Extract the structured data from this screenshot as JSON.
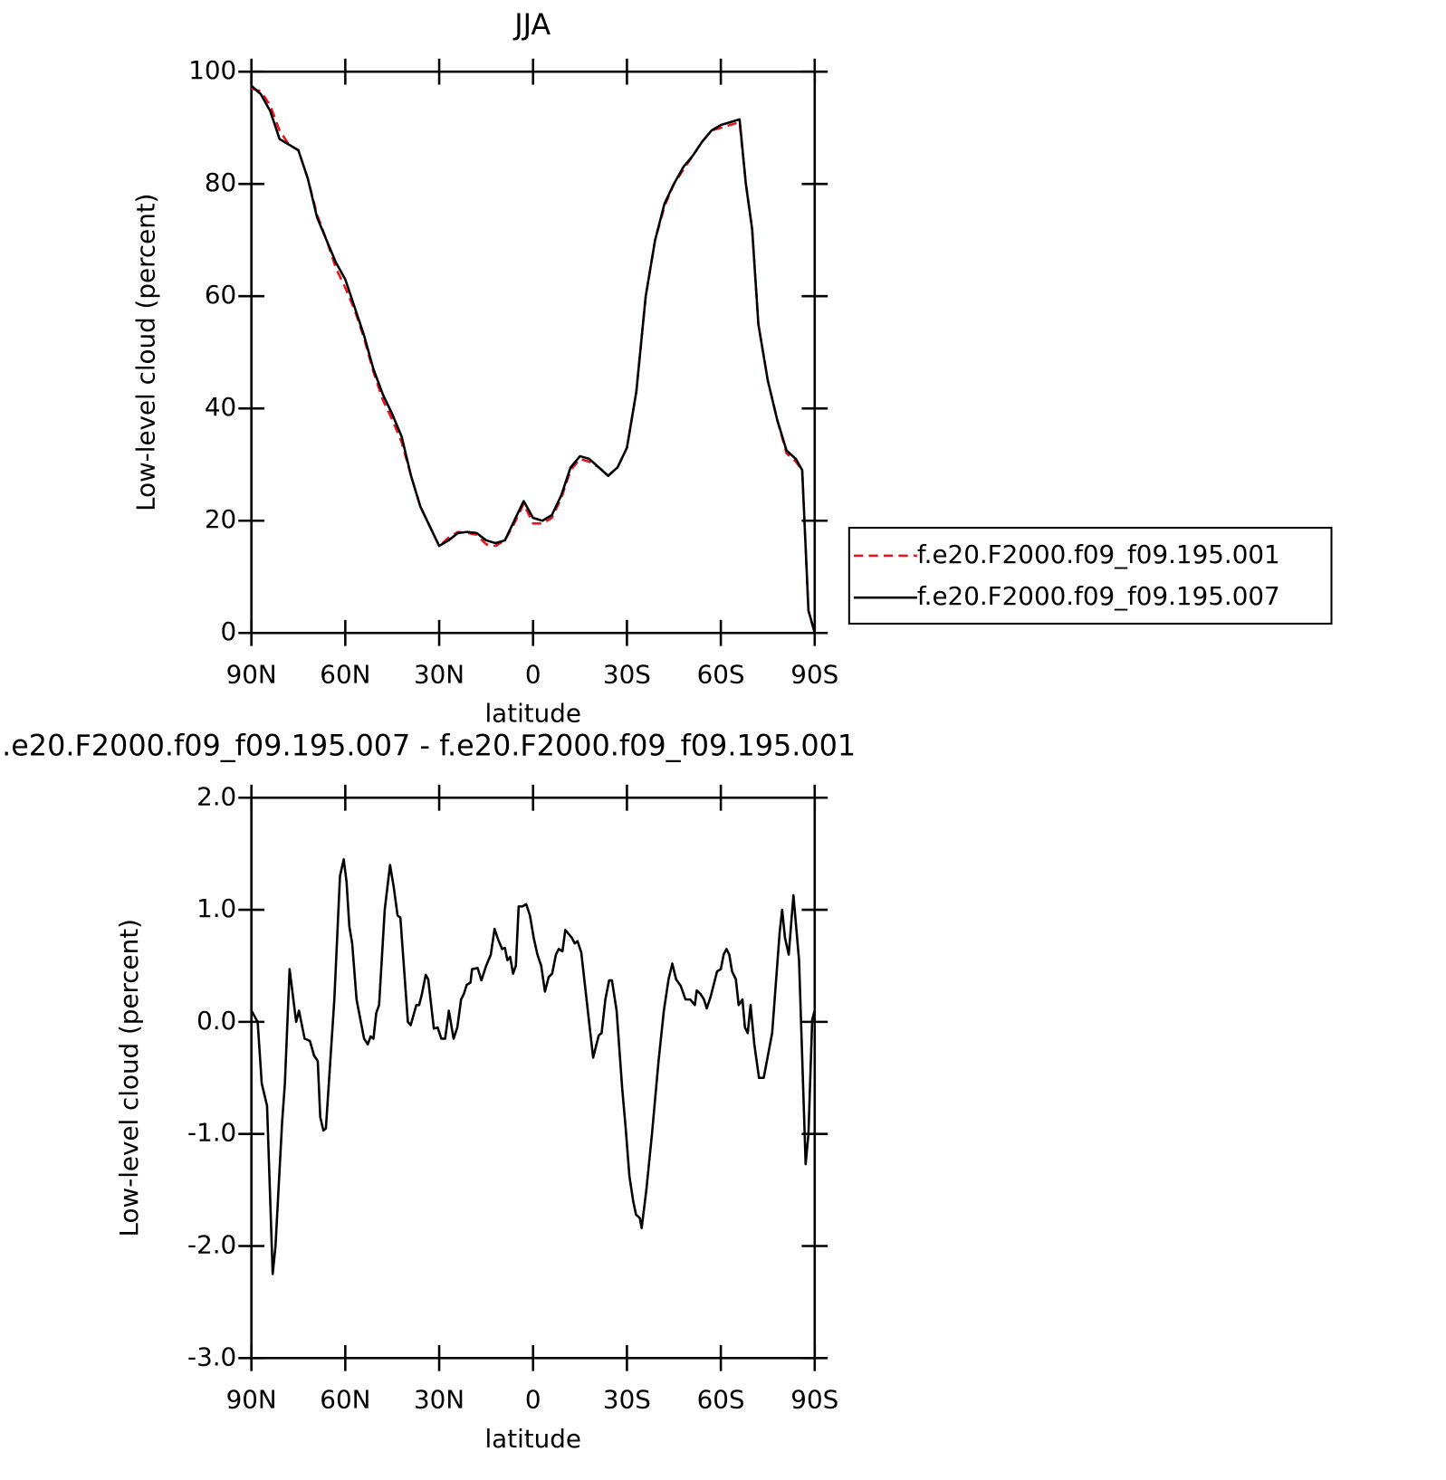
{
  "chart_data": [
    {
      "type": "line",
      "title": "JJA",
      "x_label": "latitude",
      "y_label": "Low-level cloud (percent)",
      "xlim": [
        90,
        -90
      ],
      "ylim": [
        0,
        100
      ],
      "xticks": [
        {
          "value": 90,
          "label": "90N"
        },
        {
          "value": 60,
          "label": "60N"
        },
        {
          "value": 30,
          "label": "30N"
        },
        0,
        {
          "value": -30,
          "label": "30S"
        },
        {
          "value": -60,
          "label": "60S"
        },
        {
          "value": -90,
          "label": "90S"
        }
      ],
      "yticks": [
        0,
        20,
        40,
        60,
        80,
        100
      ],
      "legend": "right",
      "x": [
        90,
        87,
        84,
        81,
        78,
        75,
        72,
        69,
        66,
        63,
        60,
        57,
        54,
        51,
        48,
        45,
        42,
        39,
        36,
        33,
        30,
        27,
        24,
        21,
        18,
        15,
        12,
        9,
        6,
        3,
        0,
        -3,
        -6,
        -9,
        -12,
        -15,
        -18,
        -21,
        -24,
        -27,
        -30,
        -33,
        -36,
        -39,
        -42,
        -45,
        -48,
        -51,
        -54,
        -57,
        -60,
        -63,
        -66,
        -68,
        -70,
        -72,
        -75,
        -78,
        -81,
        -84,
        -86,
        -88,
        -90
      ],
      "series": [
        {
          "name": "f.e20.F2000.f09_f09.195.001",
          "color": "#e8141c",
          "dash": true,
          "values": [
            97,
            96.5,
            94,
            89.5,
            87,
            86,
            81,
            74.5,
            70,
            65,
            61.5,
            57.5,
            52.5,
            46.5,
            41.5,
            38,
            34,
            28,
            22.5,
            19,
            15.5,
            17,
            18,
            17.8,
            17.5,
            15.8,
            15.5,
            16.5,
            19.5,
            23,
            19.5,
            19.5,
            20.5,
            24,
            29,
            31,
            30.5,
            29.5,
            28,
            29.5,
            33,
            43,
            60,
            70,
            76,
            80,
            82.5,
            85,
            87.5,
            89.5,
            90,
            90.5,
            91,
            80,
            72,
            55,
            45,
            38,
            32,
            30.5,
            29,
            4,
            0
          ]
        },
        {
          "name": "f.e20.F2000.f09_f09.195.007",
          "color": "#000000",
          "dash": false,
          "values": [
            97.5,
            96,
            93,
            88,
            87,
            86,
            81,
            74,
            70,
            66,
            63,
            58,
            53,
            47,
            42.5,
            39,
            35,
            28,
            22.5,
            19,
            15.5,
            16.5,
            17.8,
            18,
            17.8,
            16.5,
            16,
            16.5,
            20,
            23.5,
            20.5,
            20,
            21,
            24.5,
            29.5,
            31.5,
            31,
            29.5,
            28,
            29.5,
            33,
            43,
            60,
            70,
            76.5,
            80,
            83,
            85,
            87.5,
            89.5,
            90.5,
            91,
            91.5,
            80,
            72,
            55,
            45,
            38,
            32.5,
            31,
            29,
            4,
            0
          ]
        }
      ]
    },
    {
      "type": "line",
      "title": ".e20.F2000.f09_f09.195.007 - f.e20.F2000.f09_f09.195.001",
      "x_label": "latitude",
      "y_label": "Low-level cloud (percent)",
      "xlim": [
        90,
        -90
      ],
      "ylim": [
        -3,
        2
      ],
      "xticks": [
        {
          "value": 90,
          "label": "90N"
        },
        {
          "value": 60,
          "label": "60N"
        },
        {
          "value": 30,
          "label": "30N"
        },
        0,
        {
          "value": -30,
          "label": "30S"
        },
        {
          "value": -60,
          "label": "60S"
        },
        {
          "value": -90,
          "label": "90S"
        }
      ],
      "yticks": [
        {
          "value": -3,
          "label": "-3.0"
        },
        {
          "value": -2,
          "label": "-2.0"
        },
        {
          "value": -1,
          "label": "-1.0"
        },
        {
          "value": 0,
          "label": "0.0"
        },
        {
          "value": 1,
          "label": "1.0"
        },
        {
          "value": 2,
          "label": "2.0"
        }
      ],
      "color": "#000000",
      "x": [
        90,
        88,
        86.7,
        85,
        83.2,
        82.3,
        80.2,
        79.3,
        77.8,
        75.7,
        74.8,
        73,
        71.3,
        70,
        68.8,
        68,
        67,
        66.2,
        63.5,
        61.7,
        60.5,
        59.6,
        58.7,
        57.8,
        56.4,
        54,
        52.8,
        51.9,
        51,
        50.1,
        49.2,
        47.4,
        45.7,
        44.5,
        43.3,
        42.4,
        40,
        39.1,
        37.3,
        36.4,
        35.5,
        34.3,
        33.5,
        31.7,
        30.5,
        29.3,
        28.1,
        26.9,
        25.4,
        24.2,
        23,
        22.1,
        21.2,
        20,
        19.5,
        17.7,
        16.5,
        15,
        13.5,
        12.3,
        11.1,
        9.9,
        9,
        8.2,
        7.3,
        6.4,
        5.5,
        4.6,
        3.4,
        2.2,
        1,
        -0.2,
        -1.4,
        -2.6,
        -3.8,
        -5,
        -6.1,
        -7.3,
        -8.2,
        -9.4,
        -10.3,
        -11.5,
        -12.4,
        -13.3,
        -14.2,
        -15.4,
        -17.1,
        -19.2,
        -21,
        -21.9,
        -23.1,
        -24.3,
        -25.2,
        -26.7,
        -28.5,
        -29.6,
        -30.8,
        -32,
        -32.9,
        -34.1,
        -34.7,
        -36.2,
        -38,
        -40.1,
        -41.8,
        -43.3,
        -44.5,
        -45.7,
        -47.2,
        -48.7,
        -50.2,
        -51.7,
        -52.3,
        -53.5,
        -54.6,
        -55.5,
        -56.7,
        -58.8,
        -60,
        -60.9,
        -61.8,
        -62.7,
        -63.6,
        -64.8,
        -65.7,
        -66.9,
        -67.7,
        -68.6,
        -69.5,
        -70.7,
        -72.2,
        -73.7,
        -76.4,
        -78.8,
        -79.6,
        -80.5,
        -81.7,
        -83.2,
        -85,
        -87.1,
        -88,
        -89.2,
        -90
      ],
      "values": [
        0.1,
        0,
        -0.55,
        -0.75,
        -2.25,
        -2.0,
        -0.9,
        -0.55,
        0.47,
        0,
        0.1,
        -0.15,
        -0.17,
        -0.3,
        -0.35,
        -0.85,
        -0.97,
        -0.95,
        0.2,
        1.3,
        1.45,
        1.25,
        0.85,
        0.7,
        0.2,
        -0.15,
        -0.2,
        -0.13,
        -0.15,
        0.08,
        0.15,
        1.0,
        1.4,
        1.2,
        0.95,
        0.93,
        0,
        -0.03,
        0.15,
        0.15,
        0.25,
        0.42,
        0.38,
        -0.06,
        -0.05,
        -0.15,
        -0.15,
        0.1,
        -0.15,
        -0.05,
        0.2,
        0.25,
        0.33,
        0.35,
        0.47,
        0.48,
        0.37,
        0.5,
        0.6,
        0.83,
        0.73,
        0.65,
        0.66,
        0.55,
        0.58,
        0.43,
        0.5,
        1.03,
        1.03,
        1.05,
        0.95,
        0.75,
        0.6,
        0.5,
        0.27,
        0.4,
        0.43,
        0.6,
        0.65,
        0.63,
        0.82,
        0.78,
        0.75,
        0.7,
        0.72,
        0.62,
        0.2,
        -0.32,
        -0.12,
        -0.1,
        0.2,
        0.37,
        0.37,
        0.1,
        -0.6,
        -0.95,
        -1.38,
        -1.6,
        -1.72,
        -1.75,
        -1.84,
        -1.5,
        -1.0,
        -0.35,
        0.1,
        0.38,
        0.52,
        0.38,
        0.32,
        0.2,
        0.2,
        0.15,
        0.28,
        0.25,
        0.2,
        0.12,
        0.22,
        0.45,
        0.47,
        0.6,
        0.65,
        0.6,
        0.45,
        0.38,
        0.15,
        0.2,
        -0.05,
        -0.1,
        0.15,
        -0.2,
        -0.5,
        -0.5,
        -0.1,
        0.8,
        1.0,
        0.75,
        0.6,
        1.13,
        0.55,
        -1.27,
        -1.0,
        0.02,
        0.1
      ]
    }
  ]
}
